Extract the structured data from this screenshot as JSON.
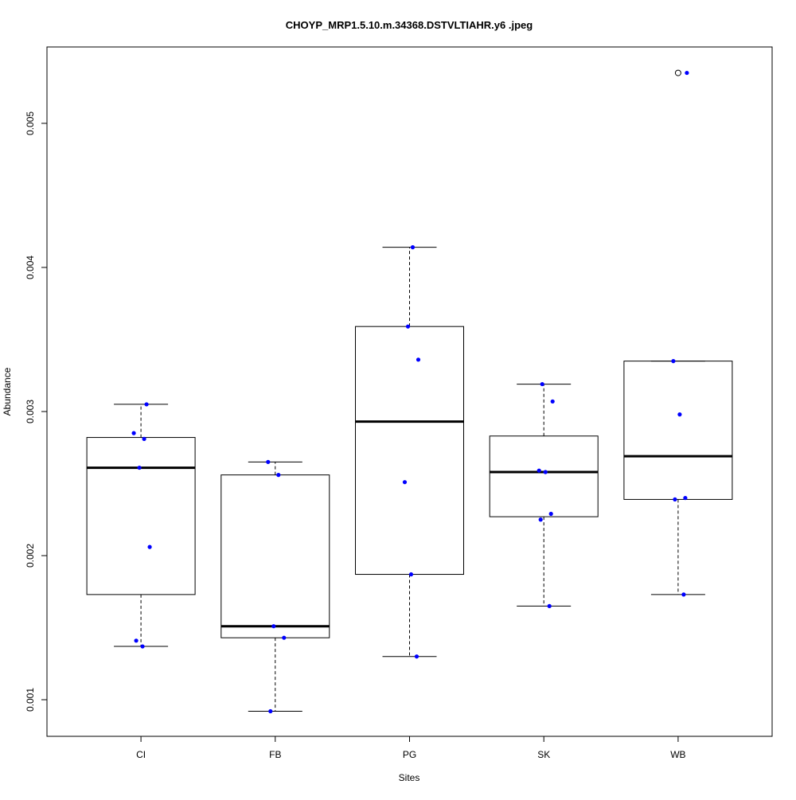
{
  "chart_data": {
    "type": "boxplot",
    "title": "CHOYP_MRP1.5.10.m.34368.DSTVLTIAHR.y6 .jpeg",
    "xlabel": "Sites",
    "ylabel": "Abundance",
    "ylim": [
      0.000746,
      0.00553
    ],
    "yticks": [
      0.001,
      0.002,
      0.003,
      0.004,
      0.005
    ],
    "ytick_labels": [
      "0.001",
      "0.002",
      "0.003",
      "0.004",
      "0.005"
    ],
    "grid": false,
    "point_color": "#0000ff",
    "categories": [
      "CI",
      "FB",
      "PG",
      "SK",
      "WB"
    ],
    "boxes": [
      {
        "whisker_low": 0.00137,
        "q1": 0.00173,
        "median": 0.00261,
        "q3": 0.00282,
        "whisker_high": 0.00305,
        "outliers": [],
        "points": [
          0.00305,
          0.00285,
          0.00281,
          0.00261,
          0.00206,
          0.00141,
          0.00137
        ]
      },
      {
        "whisker_low": 0.00092,
        "q1": 0.00143,
        "median": 0.00151,
        "q3": 0.00256,
        "whisker_high": 0.00265,
        "outliers": [],
        "points": [
          0.00265,
          0.00256,
          0.00151,
          0.00143,
          0.00092
        ]
      },
      {
        "whisker_low": 0.0013,
        "q1": 0.00187,
        "median": 0.00293,
        "q3": 0.00359,
        "whisker_high": 0.00414,
        "outliers": [],
        "points": [
          0.00414,
          0.00359,
          0.00336,
          0.00251,
          0.00187,
          0.0013
        ]
      },
      {
        "whisker_low": 0.00165,
        "q1": 0.00227,
        "median": 0.00258,
        "q3": 0.00283,
        "whisker_high": 0.00319,
        "outliers": [],
        "points": [
          0.00319,
          0.00307,
          0.00259,
          0.00258,
          0.00229,
          0.00225,
          0.00165
        ]
      },
      {
        "whisker_low": 0.00173,
        "q1": 0.00239,
        "median": 0.00269,
        "q3": 0.00335,
        "whisker_high": 0.00335,
        "outliers": [
          0.00535
        ],
        "points": [
          0.00535,
          0.00335,
          0.00298,
          0.0024,
          0.00239,
          0.00173
        ]
      }
    ]
  }
}
